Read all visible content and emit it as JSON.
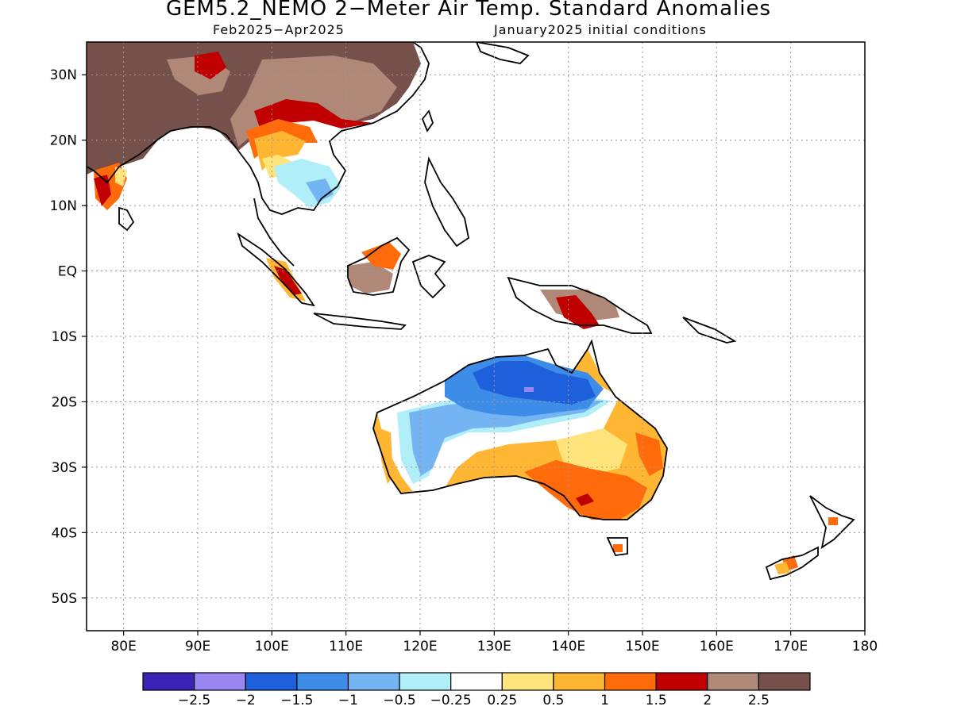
{
  "title": "GEM5.2_NEMO 2−Meter Air Temp. Standard Anomalies",
  "subtitle_left": "Feb2025−Apr2025",
  "subtitle_right": "January2025 initial conditions",
  "map": {
    "lon_range": [
      75,
      180
    ],
    "lat_range": [
      -55,
      35
    ],
    "lon_ticks": [
      "80E",
      "90E",
      "100E",
      "110E",
      "120E",
      "130E",
      "140E",
      "150E",
      "160E",
      "170E",
      "180"
    ],
    "lon_tick_values": [
      80,
      90,
      100,
      110,
      120,
      130,
      140,
      150,
      160,
      170,
      180
    ],
    "lat_ticks": [
      "30N",
      "20N",
      "10N",
      "EQ",
      "10S",
      "20S",
      "30S",
      "40S",
      "50S"
    ],
    "lat_tick_values": [
      30,
      20,
      10,
      0,
      -10,
      -20,
      -30,
      -40,
      -50
    ],
    "grid": "dotted"
  },
  "colorbar": {
    "colors": [
      "#3a22b4",
      "#9a86f2",
      "#1e5fdc",
      "#3c8ce8",
      "#74b4f2",
      "#b0eef8",
      "#ffffff",
      "#ffe47c",
      "#ffb632",
      "#ff6a0a",
      "#c00000",
      "#b08878",
      "#76504a"
    ],
    "labels": [
      "−2.5",
      "−2",
      "−1.5",
      "−1",
      "−0.5",
      "−0.25",
      "0.25",
      "0.5",
      "1",
      "1.5",
      "2",
      "2.5"
    ]
  }
}
